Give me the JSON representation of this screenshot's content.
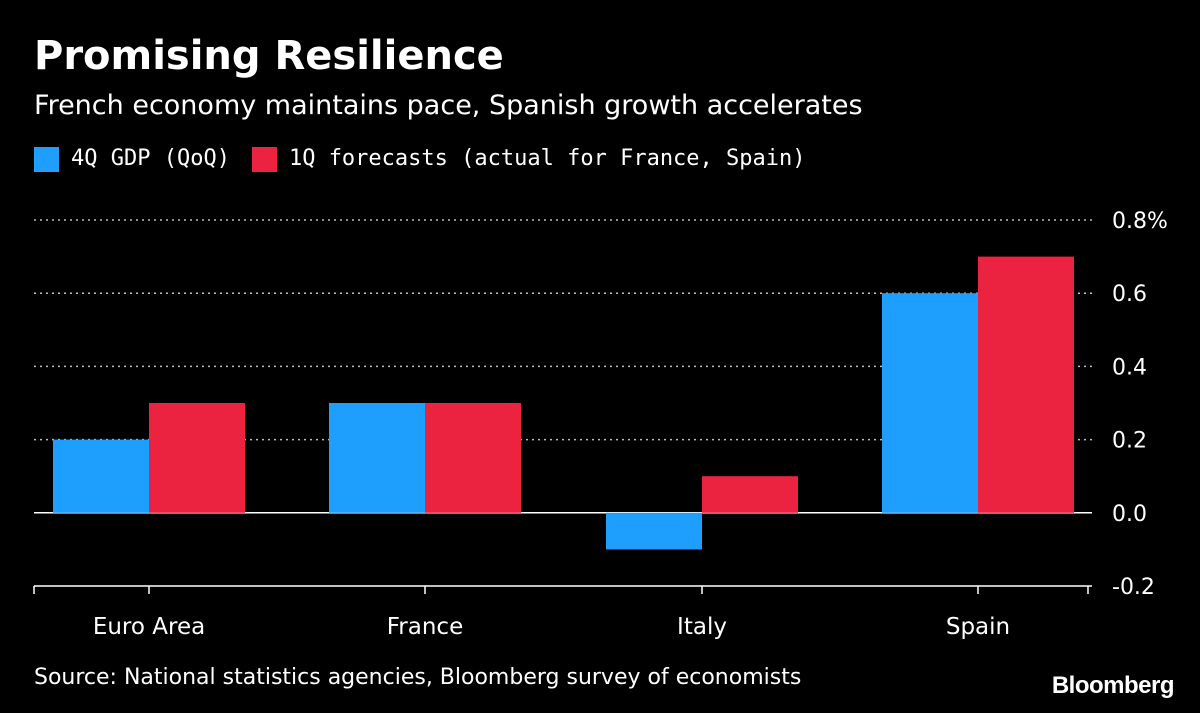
{
  "chart_data": {
    "type": "bar",
    "title": "Promising Resilience",
    "subtitle": "French economy maintains pace, Spanish growth accelerates",
    "categories": [
      "Euro Area",
      "France",
      "Italy",
      "Spain"
    ],
    "series": [
      {
        "name": "4Q GDP (QoQ)",
        "color": "#1e9ffd",
        "values": [
          0.2,
          0.3,
          -0.1,
          0.6
        ]
      },
      {
        "name": "1Q forecasts (actual for France, Spain)",
        "color": "#eb2240",
        "values": [
          0.3,
          0.3,
          0.1,
          0.7
        ]
      }
    ],
    "ylim": [
      -0.2,
      0.8
    ],
    "yticks": [
      -0.2,
      0.0,
      0.2,
      0.4,
      0.6,
      0.8
    ],
    "ytick_labels": [
      "-0.2",
      "0.0",
      "0.2",
      "0.4",
      "0.6",
      "0.8%"
    ],
    "xlabel": "",
    "ylabel": "",
    "grid": true,
    "axis_position": "right",
    "source": "Source: National statistics agencies, Bloomberg survey of economists",
    "brand": "Bloomberg"
  }
}
